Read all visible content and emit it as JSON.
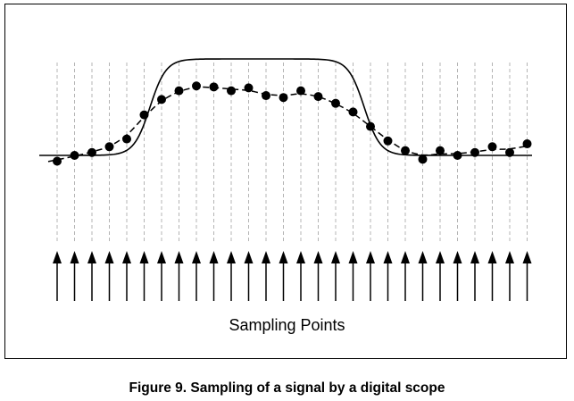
{
  "diagram": {
    "sampling_label": "Sampling Points",
    "caption": "Figure 9.  Sampling of a signal by a digital scope",
    "sample_count": 28,
    "sample_values": [
      -0.06,
      0.0,
      0.03,
      0.09,
      0.17,
      0.42,
      0.58,
      0.67,
      0.72,
      0.71,
      0.67,
      0.7,
      0.62,
      0.6,
      0.67,
      0.61,
      0.54,
      0.45,
      0.3,
      0.15,
      0.05,
      -0.04,
      0.05,
      0.0,
      0.03,
      0.09,
      0.03,
      0.12
    ],
    "colors": {
      "ink": "#000000",
      "guide": "#b4b4b4",
      "background": "#ffffff"
    }
  }
}
